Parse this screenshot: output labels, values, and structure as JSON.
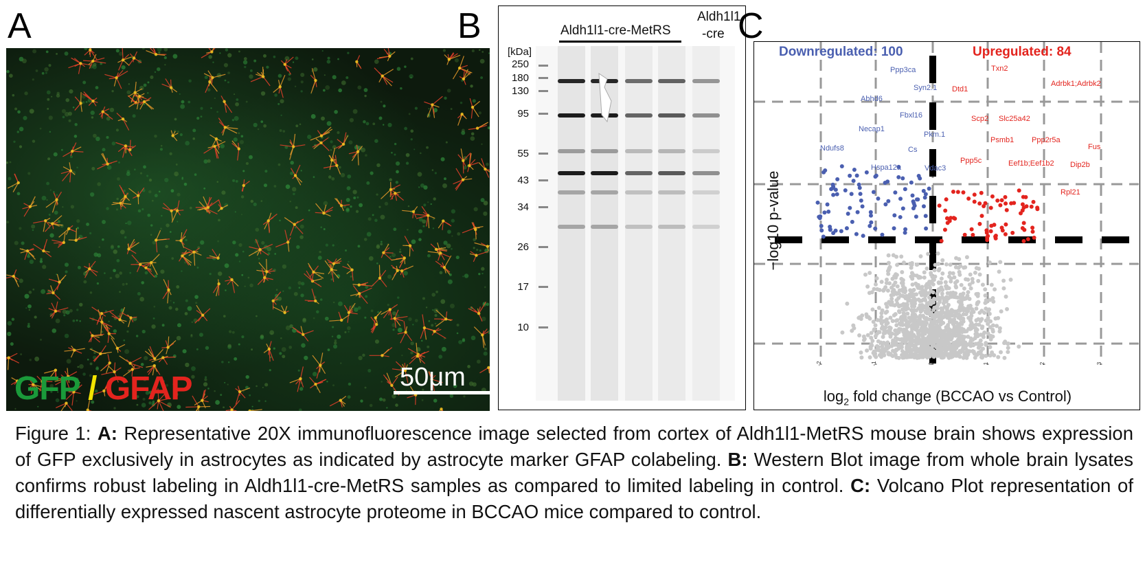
{
  "panels": {
    "a": {
      "letter": "A",
      "label_gfp": "GFP",
      "label_slash": "/",
      "label_gfap": "GFAP",
      "scalebar": "50μm"
    },
    "b": {
      "letter": "B",
      "group1": "Aldh1l1-cre-MetRS",
      "group2_line1": "Aldh1l1",
      "group2_line2": "-cre",
      "kda_header": "[kDa]",
      "kda_markers": [
        "250",
        "180",
        "130",
        "95",
        "55",
        "43",
        "34",
        "26",
        "17",
        "10"
      ]
    },
    "c": {
      "letter": "C",
      "downregulated": "Downregulated: 100",
      "upregulated": "Upregulated: 84",
      "xlabel_prefix": "log",
      "xlabel_sub": "2",
      "xlabel_rest": " fold change (BCCAO vs Control)",
      "ylabel": "−log10 p-value",
      "colors": {
        "down": "#4a5fb0",
        "up": "#e3241e",
        "ns": "#c8c8c8"
      },
      "down_genes": [
        "Ppp3ca",
        "Syn2.1",
        "Abhd6",
        "Fbxl16",
        "Necap1",
        "Pkm.1",
        "Ndufs8",
        "Cs",
        "Hspa12a",
        "Vdac3"
      ],
      "up_genes": [
        "Txn2",
        "Dtd1",
        "Adrbk1;Adrbk2",
        "Scp2",
        "Slc25a42",
        "Psmb1",
        "Ppp2r5a",
        "Fus",
        "Ppp5c",
        "Eef1b;Eef1b2",
        "Dip2b",
        "Rpl21"
      ],
      "x_ticks": [
        "-2",
        "-1",
        "0",
        "1",
        "2",
        "3"
      ]
    }
  },
  "caption": {
    "figure": "Figure 1: ",
    "a_label": "A:",
    "a_text": " Representative 20X immunofluorescence image selected from cortex of Aldh1l1-MetRS mouse brain shows expression of GFP exclusively in astrocytes as indicated by astrocyte marker GFAP colabeling. ",
    "b_label": "B:",
    "b_text": " Western Blot image from whole brain lysates confirms robust labeling in Aldh1l1-cre-MetRS samples as compared to limited labeling in control. ",
    "c_label": "C:",
    "c_text": " Volcano Plot representation of differentially expressed nascent astrocyte proteome in BCCAO mice compared to control."
  }
}
